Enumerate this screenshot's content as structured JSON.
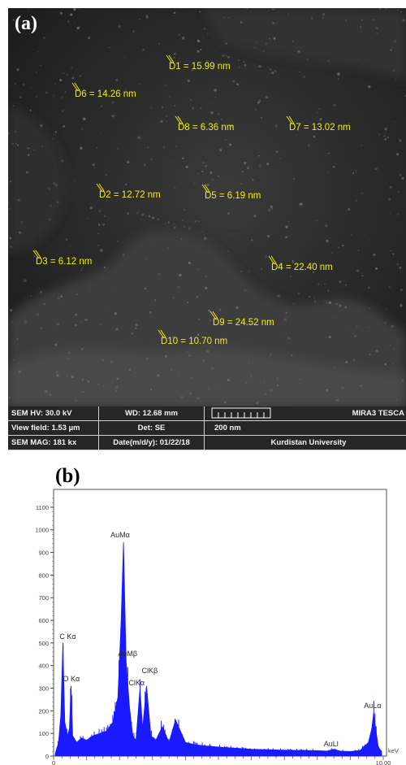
{
  "panel_a": {
    "label": "(a)",
    "measurements": [
      {
        "id": "d1",
        "text": "D1 = 15.99 nm"
      },
      {
        "id": "d6",
        "text": "D6 = 14.26 nm"
      },
      {
        "id": "d8",
        "text": "D8 = 6.36 nm"
      },
      {
        "id": "d7",
        "text": "D7 = 13.02 nm"
      },
      {
        "id": "d2",
        "text": "D2 = 12.72 nm"
      },
      {
        "id": "d5",
        "text": "D5 = 6.19 nm"
      },
      {
        "id": "d3",
        "text": "D3 = 6.12 nm"
      },
      {
        "id": "d4",
        "text": "D4 = 22.40 nm"
      },
      {
        "id": "d9",
        "text": "D9 = 24.52 nm"
      },
      {
        "id": "d10",
        "text": "D10 = 10.70 nm"
      }
    ],
    "info": {
      "hv": "SEM HV: 30.0 kV",
      "wd": "WD: 12.68 mm",
      "vendor": "MIRA3 TESCA",
      "view_field": "View field: 1.53 µm",
      "det": "Det: SE",
      "scale": "200 nm",
      "mag": "SEM MAG: 181 kx",
      "date": "Date(m/d/y): 01/22/18",
      "institution": "Kurdistan University"
    },
    "colors": {
      "annotation": "#f2f000",
      "background": "#262626"
    }
  },
  "chart_data": {
    "type": "line",
    "label": "(b)",
    "xlabel": "keV",
    "x_tick_labels": [
      "0",
      "10.00"
    ],
    "xlim": [
      0,
      10
    ],
    "ylim": [
      0,
      1150
    ],
    "y_ticks": [
      0,
      100,
      200,
      300,
      400,
      500,
      600,
      700,
      800,
      900,
      1000,
      1100
    ],
    "color": "#1a1aff",
    "peaks": [
      {
        "label": "C Kα",
        "x": 0.28,
        "y": 490
      },
      {
        "label": "O Kα",
        "x": 0.53,
        "y": 310
      },
      {
        "label": "AuMα",
        "x": 2.12,
        "y": 945
      },
      {
        "label": "AuMβ",
        "x": 2.2,
        "y": 420
      },
      {
        "label": "ClKβ",
        "x": 2.82,
        "y": 310
      },
      {
        "label": "ClKα",
        "x": 2.62,
        "y": 300
      },
      {
        "label": "AuLl",
        "x": 8.49,
        "y": 30
      },
      {
        "label": "AuLα",
        "x": 9.71,
        "y": 190
      }
    ],
    "spectrum": {
      "x": [
        0.05,
        0.15,
        0.22,
        0.28,
        0.34,
        0.42,
        0.48,
        0.53,
        0.58,
        0.7,
        0.85,
        1.0,
        1.2,
        1.4,
        1.6,
        1.8,
        1.95,
        2.05,
        2.12,
        2.2,
        2.3,
        2.4,
        2.5,
        2.62,
        2.7,
        2.82,
        2.95,
        3.1,
        3.3,
        3.5,
        3.7,
        4.0,
        4.3,
        4.6,
        5.0,
        5.5,
        6.0,
        6.5,
        7.0,
        7.5,
        8.0,
        8.3,
        8.49,
        8.7,
        9.0,
        9.3,
        9.55,
        9.65,
        9.71,
        9.78,
        9.85,
        9.95
      ],
      "y": [
        10,
        60,
        180,
        490,
        150,
        90,
        120,
        310,
        90,
        60,
        80,
        70,
        90,
        100,
        110,
        150,
        260,
        600,
        945,
        420,
        220,
        90,
        70,
        300,
        120,
        310,
        90,
        70,
        130,
        60,
        160,
        60,
        50,
        45,
        40,
        35,
        30,
        28,
        26,
        25,
        24,
        22,
        30,
        22,
        20,
        25,
        60,
        120,
        190,
        110,
        40,
        20
      ]
    }
  }
}
